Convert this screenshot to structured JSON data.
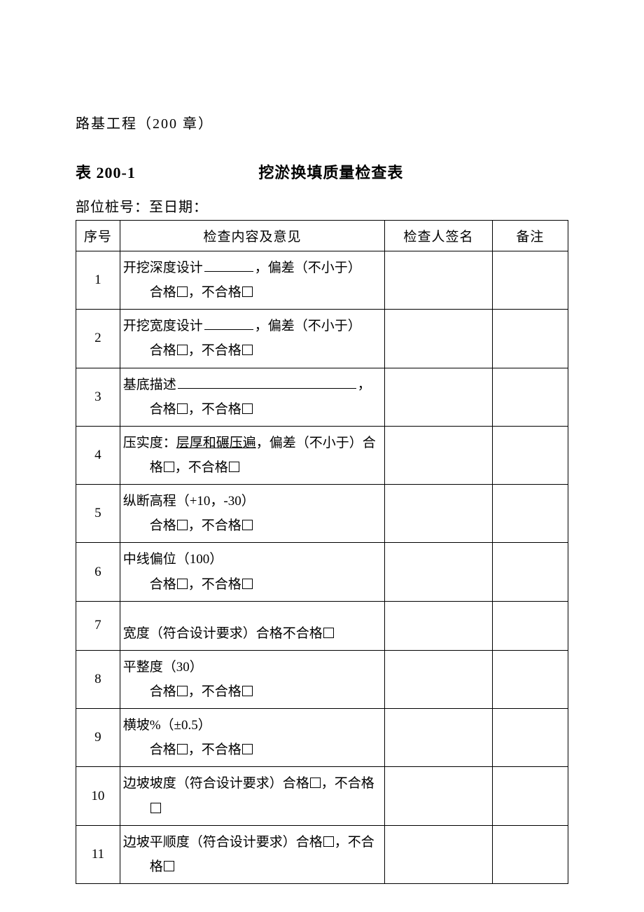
{
  "chapter": "路基工程（200 章）",
  "table_num": "表 200-1",
  "table_title": "挖淤换填质量检查表",
  "meta": "部位桩号：至日期：",
  "headers": {
    "seq": "序号",
    "content": "检查内容及意见",
    "signer": "检查人签名",
    "remark": "备注"
  },
  "qualified": "合格",
  "unqualified": "不合格",
  "rows": [
    {
      "seq": "1",
      "t1a": "开挖深度设计",
      "t1b": "，偏差（不小于）",
      "line2_std": true
    },
    {
      "seq": "2",
      "t1a": "开挖宽度设计",
      "t1b": "，偏差（不小于）",
      "line2_std": true
    },
    {
      "seq": "3",
      "t1a": "基底描述",
      "t1b": "，",
      "long_blank": true,
      "line2_std": true
    },
    {
      "seq": "4",
      "t1": "压实度：",
      "t1u": "层厚和碾压遍",
      "t1c": "，偏差（不小于）合",
      "line2_text": "格",
      "line2_tail_unq": true
    },
    {
      "seq": "5",
      "t1": "纵断高程（+10，-30）",
      "line2_std": true
    },
    {
      "seq": "6",
      "t1": "中线偏位（100）",
      "line2_std": true
    },
    {
      "seq": "7",
      "t1": "宽度（符合设计要求）合格不合格",
      "tail_box": true
    },
    {
      "seq": "8",
      "t1": "平整度（30）",
      "line2_std": true
    },
    {
      "seq": "9",
      "t1": "横坡%（±0.5）",
      "line2_std": true
    },
    {
      "seq": "10",
      "t1": "边坡坡度（符合设计要求）合格",
      "mid_box_text": "，不合格",
      "line2_box_only": true
    },
    {
      "seq": "11",
      "t1": "边坡平顺度（符合设计要求）合格",
      "mid_box_text": "，不合",
      "line2_text": "格",
      "line2_tail_box": true
    }
  ]
}
